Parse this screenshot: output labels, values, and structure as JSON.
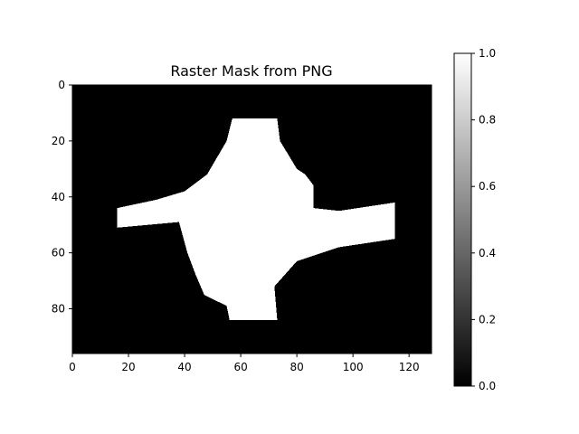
{
  "chart_data": {
    "type": "heatmap",
    "title": "Raster Mask from PNG",
    "xlim": [
      0,
      128
    ],
    "ylim": [
      96,
      0
    ],
    "x_ticks": [
      0,
      20,
      40,
      60,
      80,
      100,
      120
    ],
    "y_ticks": [
      0,
      20,
      40,
      60,
      80
    ],
    "colormap": "gray",
    "values_range": [
      0.0,
      1.0
    ],
    "colorbar": {
      "ticks": [
        0.0,
        0.2,
        0.4,
        0.6,
        0.8,
        1.0
      ],
      "tick_labels": [
        "0.0",
        "0.2",
        "0.4",
        "0.6",
        "0.8",
        "1.0"
      ]
    },
    "mask_value_1_outline": [
      [
        57,
        12
      ],
      [
        73,
        12
      ],
      [
        74,
        20
      ],
      [
        80,
        30
      ],
      [
        83,
        32
      ],
      [
        86,
        36
      ],
      [
        86,
        44
      ],
      [
        95,
        45
      ],
      [
        115,
        42
      ],
      [
        115,
        55
      ],
      [
        95,
        58
      ],
      [
        80,
        63
      ],
      [
        72,
        72
      ],
      [
        73,
        84
      ],
      [
        56,
        84
      ],
      [
        55,
        79
      ],
      [
        47,
        75
      ],
      [
        44,
        68
      ],
      [
        41,
        60
      ],
      [
        38,
        49
      ],
      [
        27,
        50
      ],
      [
        16,
        51
      ],
      [
        16,
        44
      ],
      [
        30,
        41
      ],
      [
        40,
        38
      ],
      [
        48,
        32
      ],
      [
        55,
        20
      ]
    ],
    "colors": {
      "mask_on": "#ffffff",
      "mask_off": "#000000"
    }
  }
}
